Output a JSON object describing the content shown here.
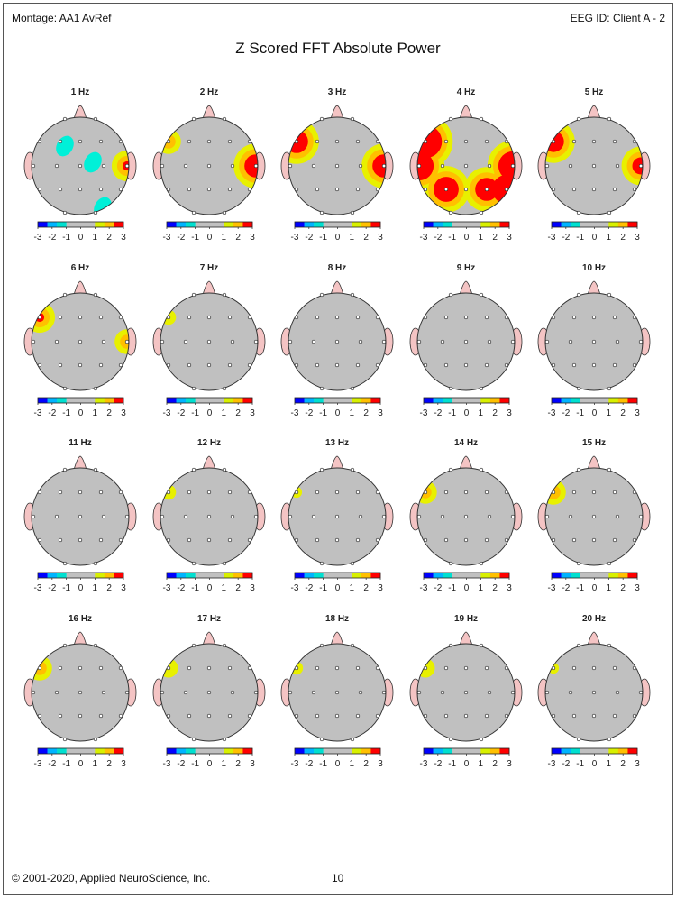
{
  "header": {
    "montage": "Montage:  AA1 AvRef",
    "eeg_id": "EEG ID:  Client A - 2"
  },
  "title": "Z Scored FFT Absolute Power",
  "colorbar": {
    "ticks": [
      "-3",
      "-2",
      "-1",
      "0",
      "1",
      "2",
      "3"
    ],
    "colors": [
      "#0000ff",
      "#00b4ff",
      "#00e0d0",
      "#c0c0c0",
      "#c0c0c0",
      "#c0c0c0",
      "#d8f000",
      "#ffc000",
      "#ff0000"
    ]
  },
  "colors": {
    "head": "#c0c0c0",
    "ear": "#f4c4c4",
    "positive_1": "#e8f000",
    "positive_2": "#ffc000",
    "positive_3": "#ff0000",
    "negative_2": "#00f0d8"
  },
  "maps": [
    {
      "label": "1 Hz",
      "hotspots": [
        [
          "F3",
          -2
        ],
        [
          "C4",
          -2
        ],
        [
          "O2",
          -2
        ],
        [
          "T4",
          2.6
        ]
      ]
    },
    {
      "label": "2 Hz",
      "hotspots": [
        [
          "F7",
          2.3
        ],
        [
          "T4",
          3.3
        ]
      ]
    },
    {
      "label": "3 Hz",
      "hotspots": [
        [
          "F7",
          3.3
        ],
        [
          "T4",
          3.3
        ]
      ]
    },
    {
      "label": "4 Hz",
      "hotspots": [
        [
          "F7",
          3.8
        ],
        [
          "T3",
          3.6
        ],
        [
          "P3",
          3.4
        ],
        [
          "T4",
          3.6
        ],
        [
          "T6",
          3.6
        ],
        [
          "P4",
          3.3
        ]
      ]
    },
    {
      "label": "5 Hz",
      "hotspots": [
        [
          "F7",
          3.2
        ],
        [
          "T4",
          3.0
        ]
      ]
    },
    {
      "label": "6 Hz",
      "hotspots": [
        [
          "F7",
          2.6
        ],
        [
          "T4",
          2.3
        ]
      ]
    },
    {
      "label": "7 Hz",
      "hotspots": [
        [
          "F7",
          1.8
        ]
      ]
    },
    {
      "label": "8 Hz",
      "hotspots": []
    },
    {
      "label": "9 Hz",
      "hotspots": []
    },
    {
      "label": "10 Hz",
      "hotspots": []
    },
    {
      "label": "11 Hz",
      "hotspots": []
    },
    {
      "label": "12 Hz",
      "hotspots": [
        [
          "F7",
          1.8
        ]
      ]
    },
    {
      "label": "13 Hz",
      "hotspots": [
        [
          "F7",
          1.6
        ]
      ]
    },
    {
      "label": "14 Hz",
      "hotspots": [
        [
          "F7",
          2.2
        ]
      ]
    },
    {
      "label": "15 Hz",
      "hotspots": [
        [
          "F7",
          2.3
        ]
      ]
    },
    {
      "label": "16 Hz",
      "hotspots": [
        [
          "F7",
          2.3
        ]
      ]
    },
    {
      "label": "17 Hz",
      "hotspots": [
        [
          "F7",
          2.0
        ]
      ]
    },
    {
      "label": "18 Hz",
      "hotspots": [
        [
          "F7",
          1.7
        ]
      ]
    },
    {
      "label": "19 Hz",
      "hotspots": [
        [
          "F7",
          2.0
        ]
      ]
    },
    {
      "label": "20 Hz",
      "hotspots": [
        [
          "F7",
          1.6
        ]
      ]
    }
  ],
  "footer": {
    "copyright": "© 2001-2020, Applied NeuroScience, Inc.",
    "page_number": "10"
  }
}
